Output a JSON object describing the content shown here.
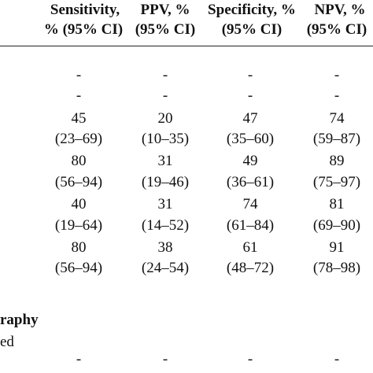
{
  "header": {
    "line1": [
      "Sensitivity,",
      "PPV, %",
      "Specificity, %",
      "NPV, %"
    ],
    "line2": [
      "% (95% CI)",
      "(95% CI)",
      "(95% CI)",
      "(95% CI)"
    ]
  },
  "rows": [
    {
      "cells": [
        "-",
        "-",
        "-",
        "-"
      ]
    },
    {
      "cells": [
        "-",
        "-",
        "-",
        "-"
      ]
    },
    {
      "cells": [
        "45",
        "20",
        "47",
        "74"
      ]
    },
    {
      "cells": [
        "(23–69)",
        "(10–35)",
        "(35–60)",
        "(59–87)"
      ]
    },
    {
      "cells": [
        "80",
        "31",
        "49",
        "89"
      ]
    },
    {
      "cells": [
        "(56–94)",
        "(19–46)",
        "(36–61)",
        "(75–97)"
      ]
    },
    {
      "cells": [
        "40",
        "31",
        "74",
        "81"
      ]
    },
    {
      "cells": [
        "(19–64)",
        "(14–52)",
        "(61–84)",
        "(69–90)"
      ]
    },
    {
      "cells": [
        "80",
        "38",
        "61",
        "91"
      ]
    },
    {
      "cells": [
        "(56–94)",
        "(24–54)",
        "(48–72)",
        "(78–98)"
      ]
    }
  ],
  "section": {
    "label": "raphy",
    "sublabel": "ed",
    "cells": [
      "-",
      "-",
      "-",
      "-"
    ]
  }
}
